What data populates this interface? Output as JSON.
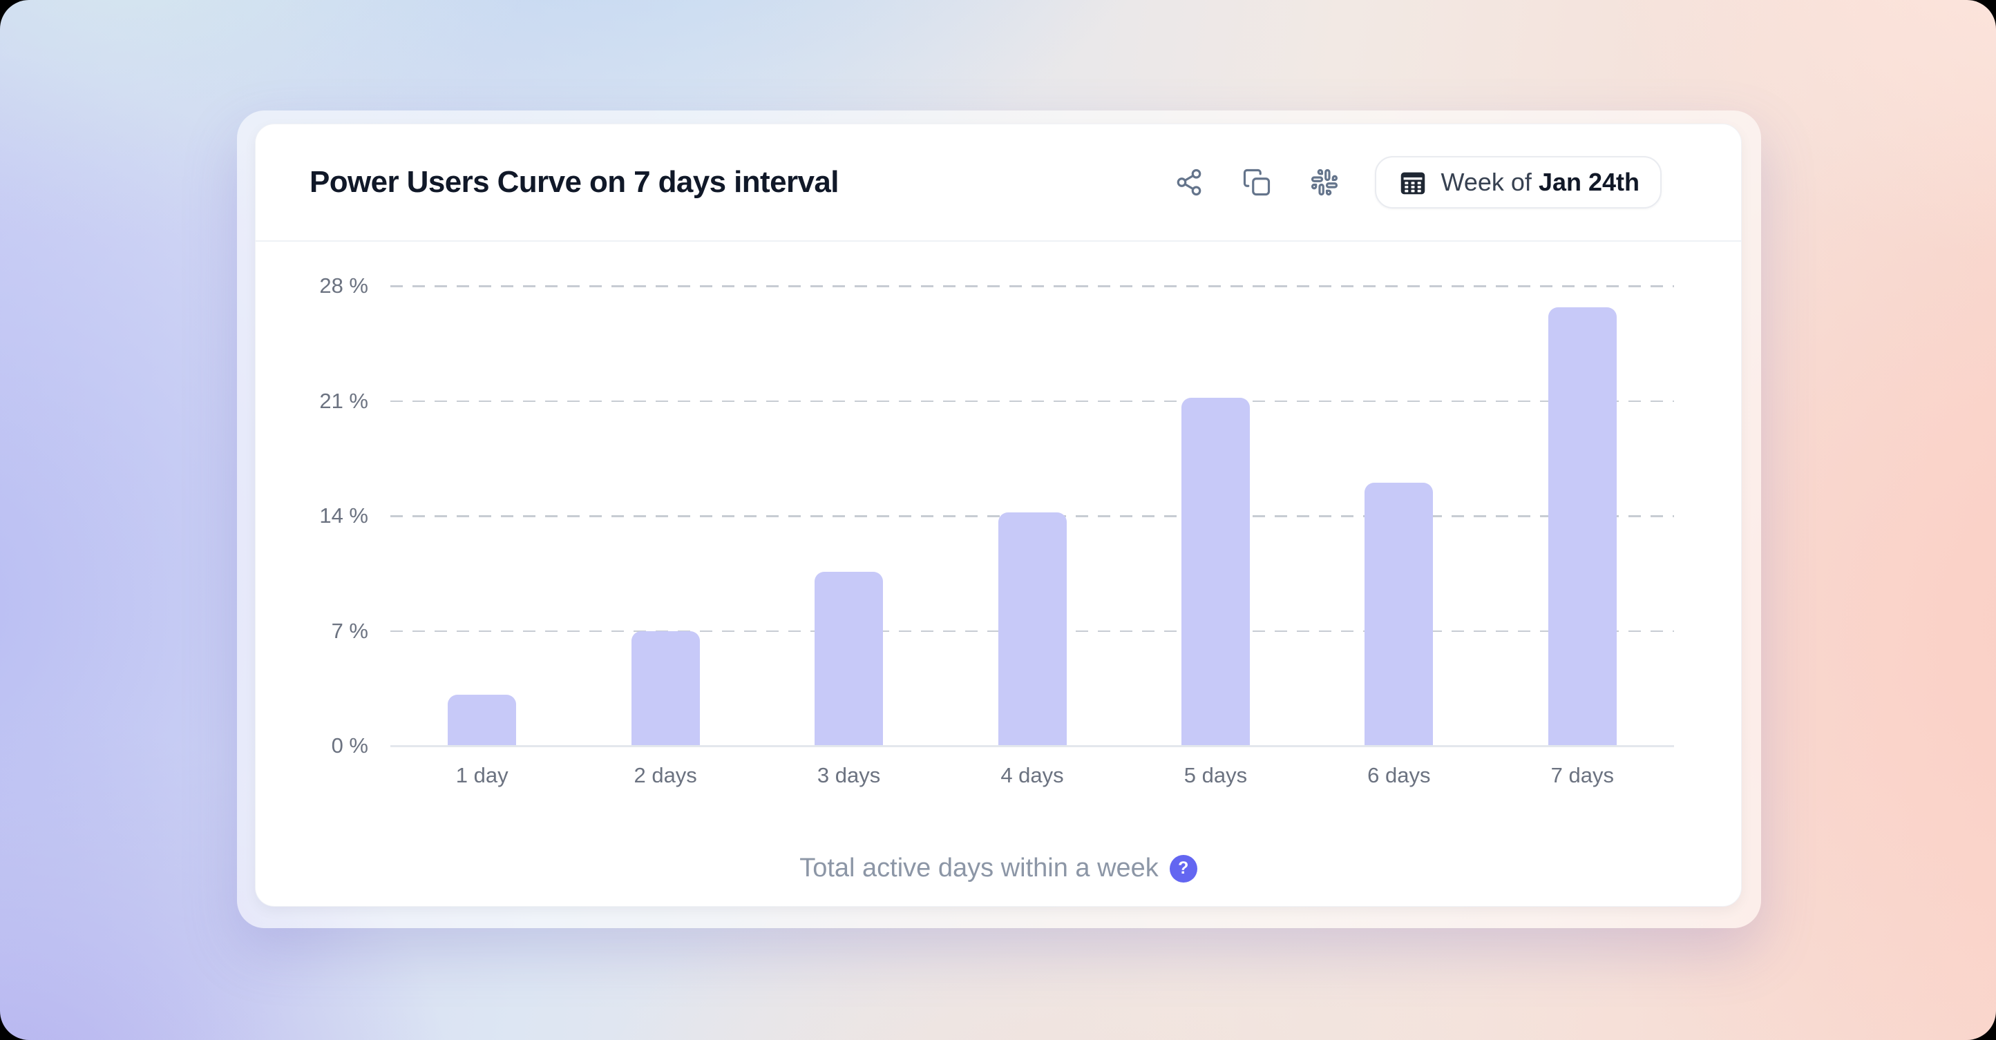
{
  "header": {
    "title": "Power Users Curve on 7 days interval",
    "date_button": {
      "prefix": "Week of",
      "date": "Jan 24th"
    }
  },
  "footer": {
    "label": "Total active days within a week",
    "help_glyph": "?"
  },
  "colors": {
    "bar": "#c7c9f8",
    "accent": "#6366f1",
    "title_text": "#101828",
    "axis_label": "#6b7280",
    "footer_text": "#8c96a6",
    "icon_gray": "#64748b"
  },
  "chart_data": {
    "type": "bar",
    "categories": [
      "1 day",
      "2 days",
      "3 days",
      "4 days",
      "5 days",
      "6 days",
      "7 days"
    ],
    "values": [
      3.1,
      7.0,
      10.6,
      14.2,
      21.2,
      16.0,
      26.7
    ],
    "title": "Power Users Curve on 7 days interval",
    "xlabel": "Total active days within a week",
    "ylabel": "",
    "ylim": [
      0,
      28
    ],
    "yticks": [
      0,
      7,
      14,
      21,
      28
    ],
    "ytick_suffix": " %",
    "grid": "horizontal-dashed",
    "legend": "none",
    "bar_color": "#c7c9f8"
  }
}
